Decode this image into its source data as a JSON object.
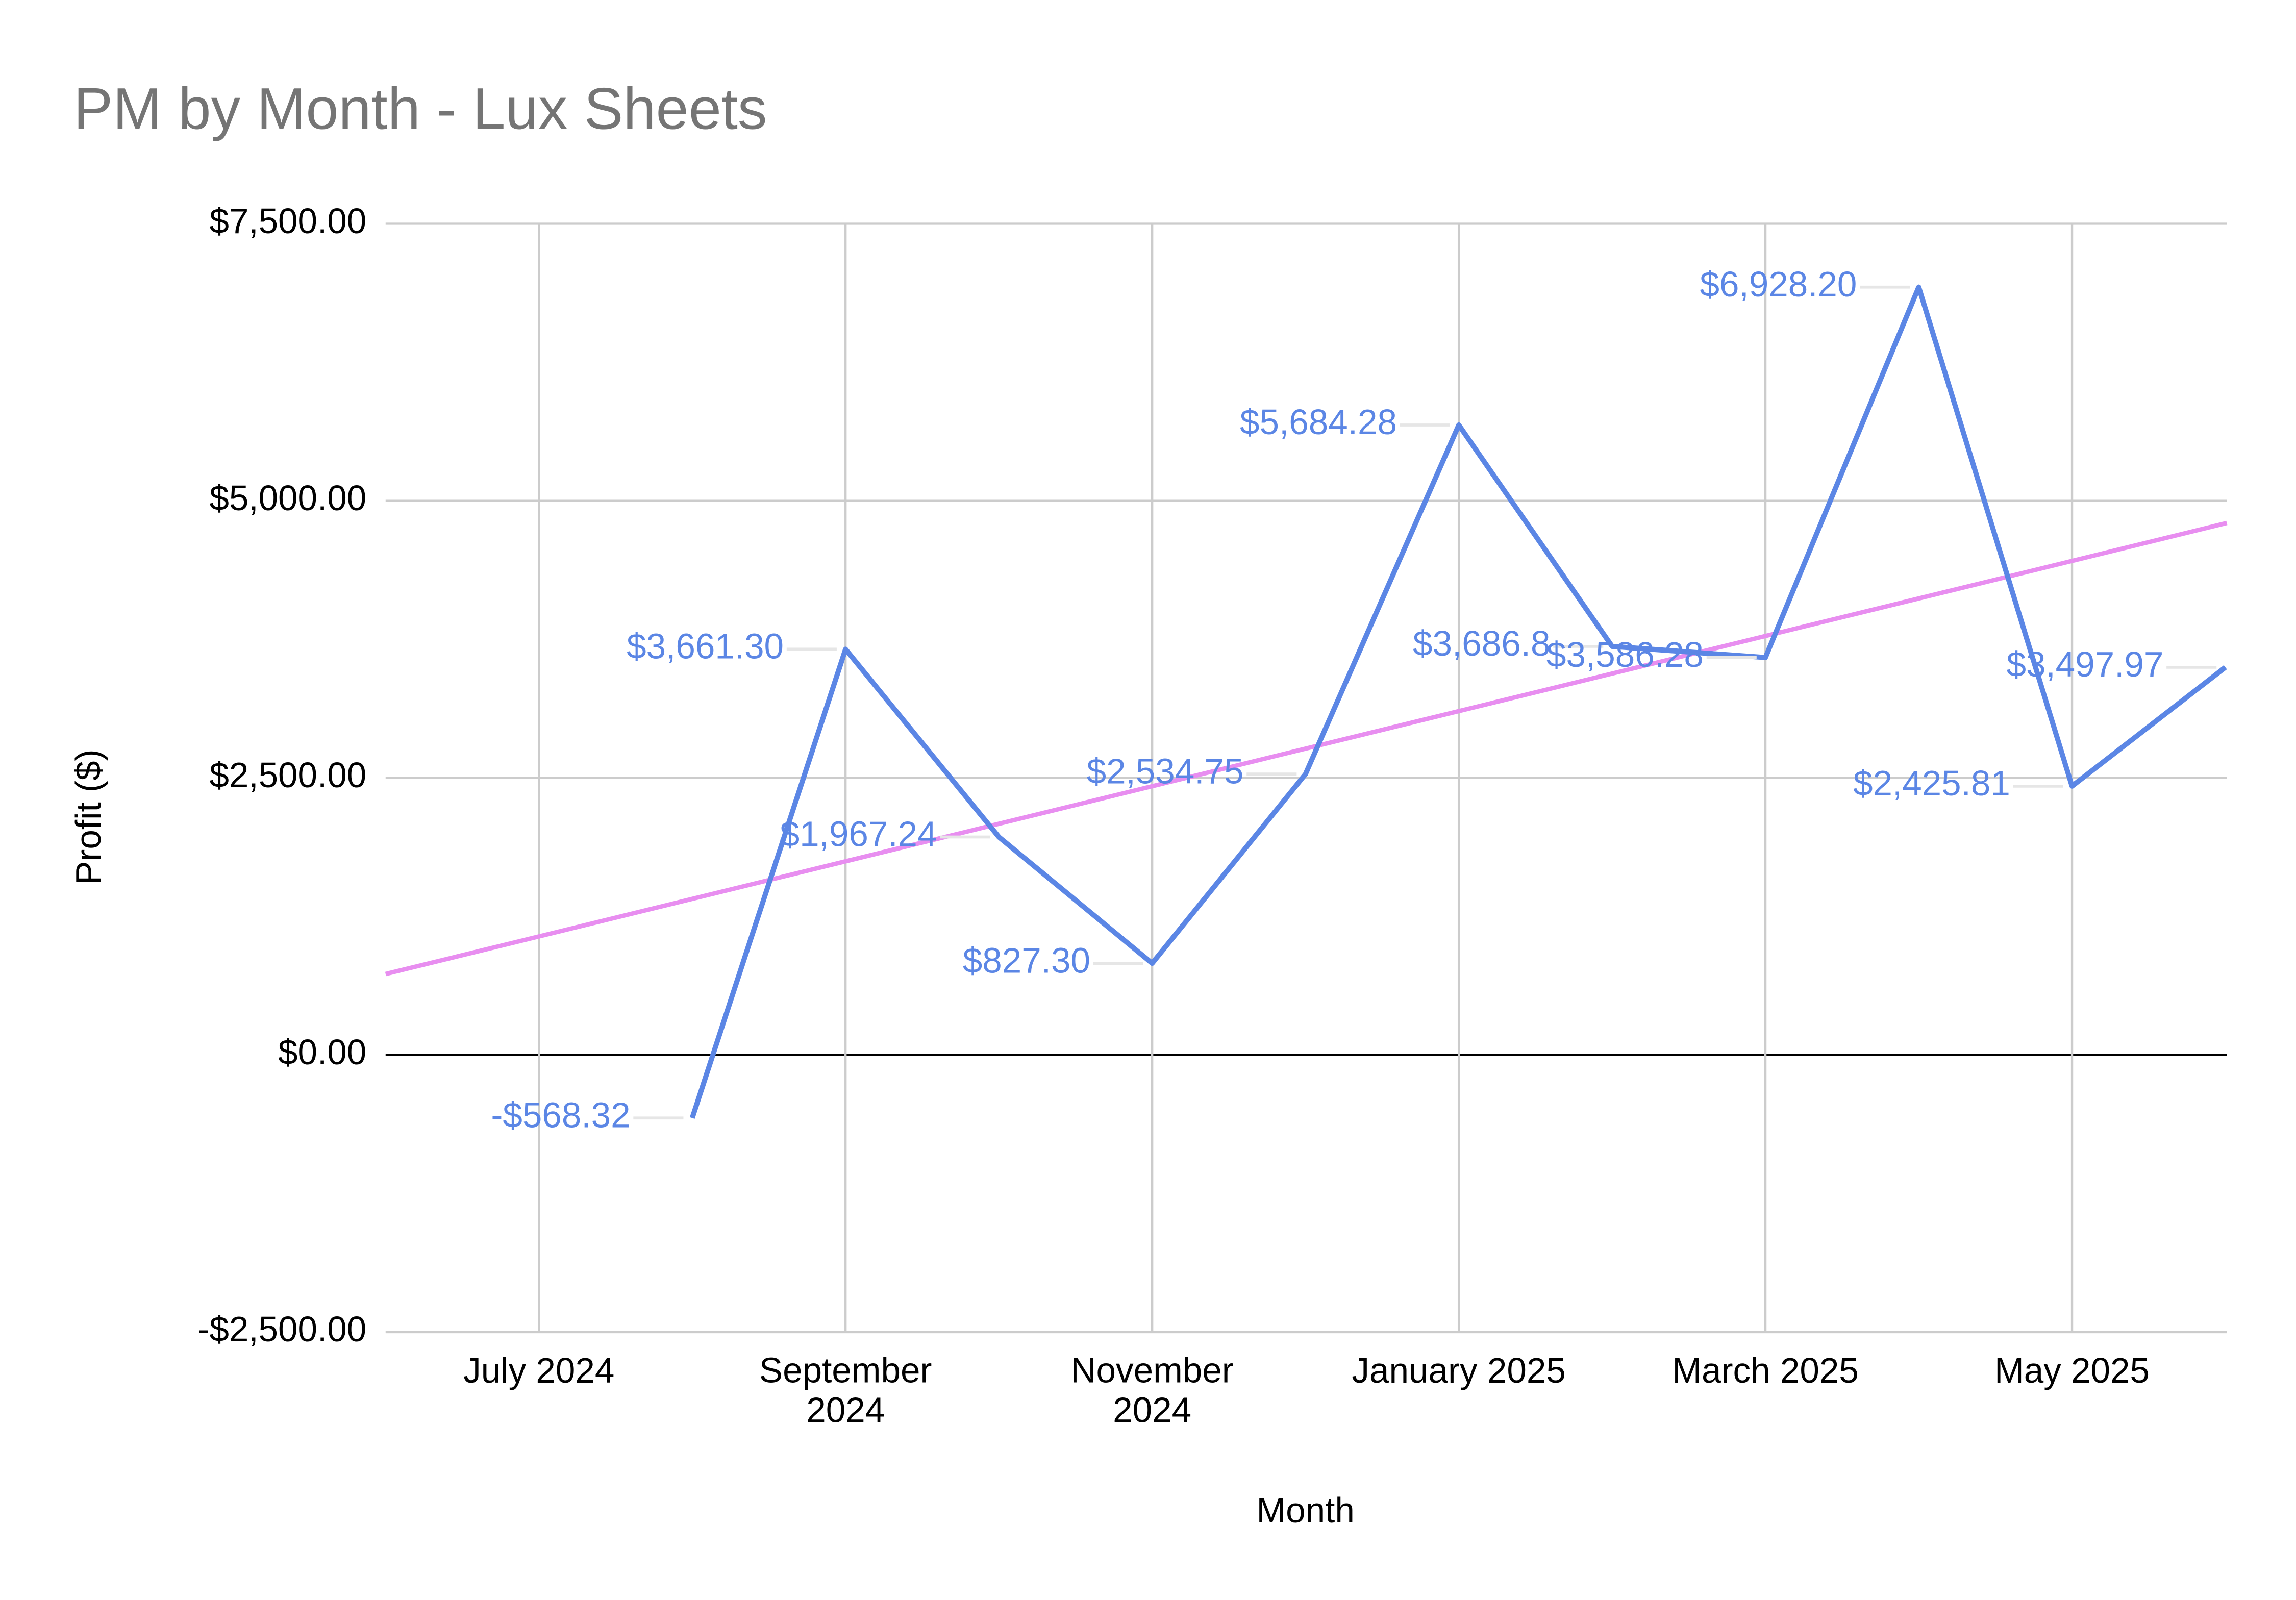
{
  "chart_data": {
    "type": "line",
    "title": "PM by Month - Lux Sheets",
    "x_label": "Month",
    "y_label": "Profit ($)",
    "categories": [
      null,
      "July 2024",
      null,
      "September 2024",
      null,
      "November 2024",
      null,
      "January 2025",
      null,
      "March 2025",
      null,
      "May 2025",
      null
    ],
    "series": [
      {
        "color": "#5b86e5",
        "values": [
          null,
          null,
          -568.32,
          3661.3,
          1967.24,
          827.3,
          2534.75,
          5684.28,
          3686.8,
          3586.28,
          6928.2,
          2425.81,
          3497.97
        ],
        "value_labels": [
          null,
          null,
          "-$568.32",
          "$3,661.30",
          "$1,967.24",
          "$827.30",
          "$2,534.75",
          "$5,684.28",
          "$3,686.8",
          "$3,586.28",
          "$6,928.20",
          "$2,425.81",
          "$3,497.97"
        ]
      }
    ],
    "trendline": {
      "color": "#e88ef0",
      "values": [
        731,
        4800
      ]
    },
    "ylim": [
      -2500,
      7500
    ],
    "yticks": [
      {
        "value": -2500,
        "label": "-$2,500.00"
      },
      {
        "value": 0,
        "label": "$0.00"
      },
      {
        "value": 2500,
        "label": "$2,500.00"
      },
      {
        "value": 5000,
        "label": "$5,000.00"
      },
      {
        "value": 7500,
        "label": "$7,500.00"
      }
    ],
    "grid": true
  }
}
